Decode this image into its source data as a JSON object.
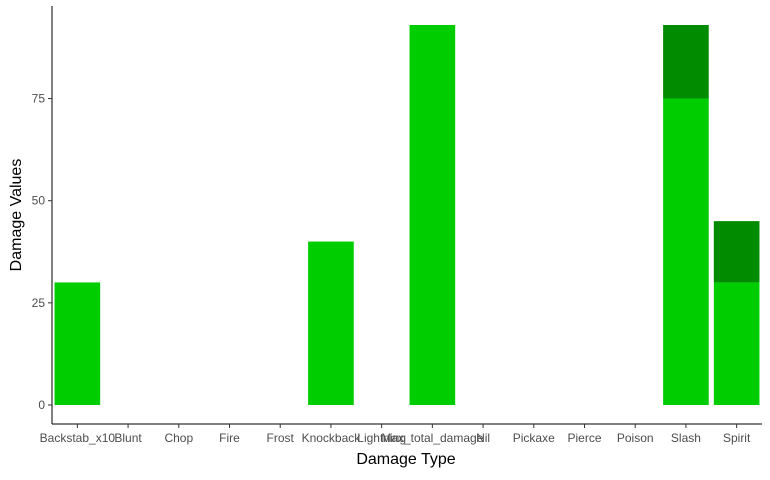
{
  "chart_data": {
    "type": "bar",
    "stacked": true,
    "xlabel": "Damage Type",
    "ylabel": "Damage Values",
    "categories": [
      "Backstab_x10",
      "Blunt",
      "Chop",
      "Fire",
      "Frost",
      "Knockback",
      "Lightning",
      "Max_total_damage",
      "Nil",
      "Pickaxe",
      "Pierce",
      "Poison",
      "Slash",
      "Spirit"
    ],
    "series": [
      {
        "values": [
          30,
          0,
          0,
          0,
          0,
          40,
          0,
          93,
          0,
          0,
          0,
          0,
          75,
          30
        ],
        "color": "#00cd00"
      },
      {
        "values": [
          0,
          0,
          0,
          0,
          0,
          0,
          0,
          0,
          0,
          0,
          0,
          0,
          18,
          15
        ],
        "color": "#008b00"
      }
    ],
    "yticks": [
      0,
      25,
      50,
      75
    ],
    "ylim": [
      -4.65,
      97.65
    ],
    "grid": false,
    "legend": "none"
  }
}
